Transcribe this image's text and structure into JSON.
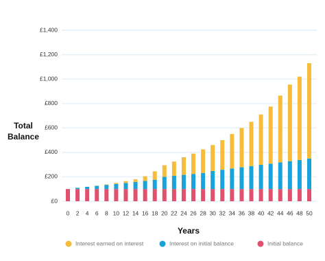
{
  "chart_data": {
    "type": "stacked_bar",
    "y_label": "Total Balance",
    "x_label": "Years",
    "categories": [
      "0",
      "2",
      "4",
      "6",
      "8",
      "10",
      "12",
      "14",
      "16",
      "18",
      "20",
      "22",
      "24",
      "26",
      "28",
      "30",
      "32",
      "34",
      "36",
      "38",
      "40",
      "42",
      "44",
      "46",
      "48",
      "50"
    ],
    "series": [
      {
        "name": "Interest earned on interest",
        "color": "#f5bd3b",
        "values": [
          0,
          0,
          0,
          2,
          4,
          8,
          15,
          22,
          39,
          69,
          95,
          117,
          144,
          166,
          193,
          212,
          242,
          282,
          322,
          362,
          412,
          467,
          547,
          627,
          682,
          780
        ]
      },
      {
        "name": "Interest on initial balance",
        "color": "#1aa3d9",
        "values": [
          0,
          10,
          18,
          26,
          34,
          42,
          50,
          58,
          66,
          76,
          100,
          108,
          116,
          124,
          132,
          148,
          158,
          168,
          178,
          188,
          198,
          208,
          218,
          228,
          238,
          250
        ]
      },
      {
        "name": "Initial balance",
        "color": "#e0516e",
        "values": [
          100,
          100,
          100,
          100,
          100,
          100,
          100,
          100,
          100,
          100,
          100,
          100,
          100,
          100,
          100,
          100,
          100,
          100,
          100,
          100,
          100,
          100,
          100,
          100,
          100,
          100
        ]
      }
    ],
    "ylim": [
      0,
      1400
    ],
    "yticks": [
      {
        "value": 0,
        "label": "£0"
      },
      {
        "value": 200,
        "label": "£200"
      },
      {
        "value": 400,
        "label": "£400"
      },
      {
        "value": 600,
        "label": "£600"
      },
      {
        "value": 800,
        "label": "£800"
      },
      {
        "value": 1000,
        "label": "£1,000"
      },
      {
        "value": 1200,
        "label": "£1,200"
      },
      {
        "value": 1400,
        "label": "£1,400"
      }
    ],
    "grid": true
  }
}
